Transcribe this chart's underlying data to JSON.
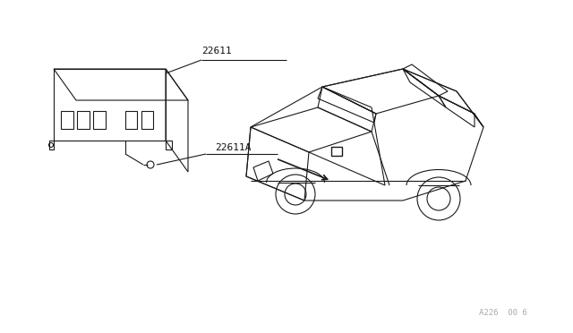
{
  "background_color": "#ffffff",
  "border_color": "#cccccc",
  "line_color": "#1a1a1a",
  "label_color": "#111111",
  "watermark_color": "#aaaaaa",
  "label_22611": "22611",
  "label_22611A": "22611A",
  "watermark_text": "A226  00 6",
  "figsize": [
    6.4,
    3.72
  ],
  "dpi": 100
}
